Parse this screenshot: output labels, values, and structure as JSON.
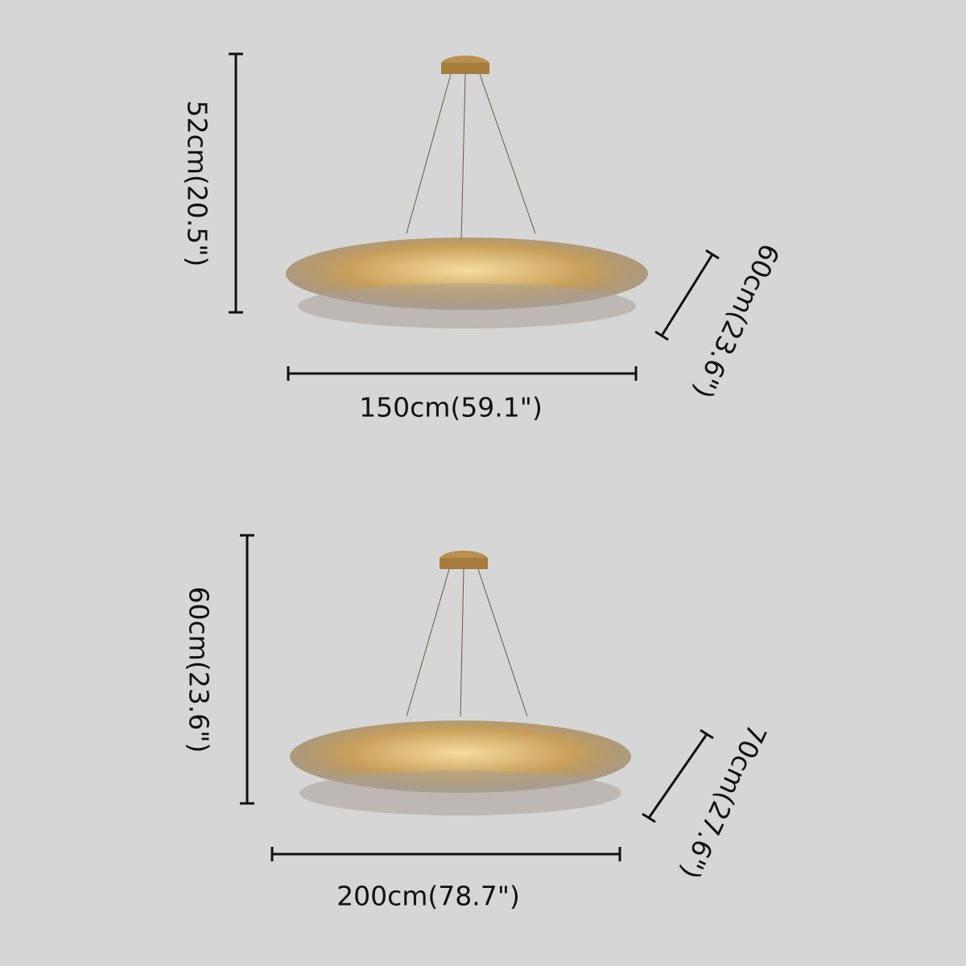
{
  "products": [
    {
      "height": "52cm(20.5\")",
      "width": "150cm(59.1\")",
      "depth": "60cm(23.6\")"
    },
    {
      "height": "60cm(23.6\")",
      "width": "200cm(78.7\")",
      "depth": "70cm(27.6\")"
    }
  ]
}
